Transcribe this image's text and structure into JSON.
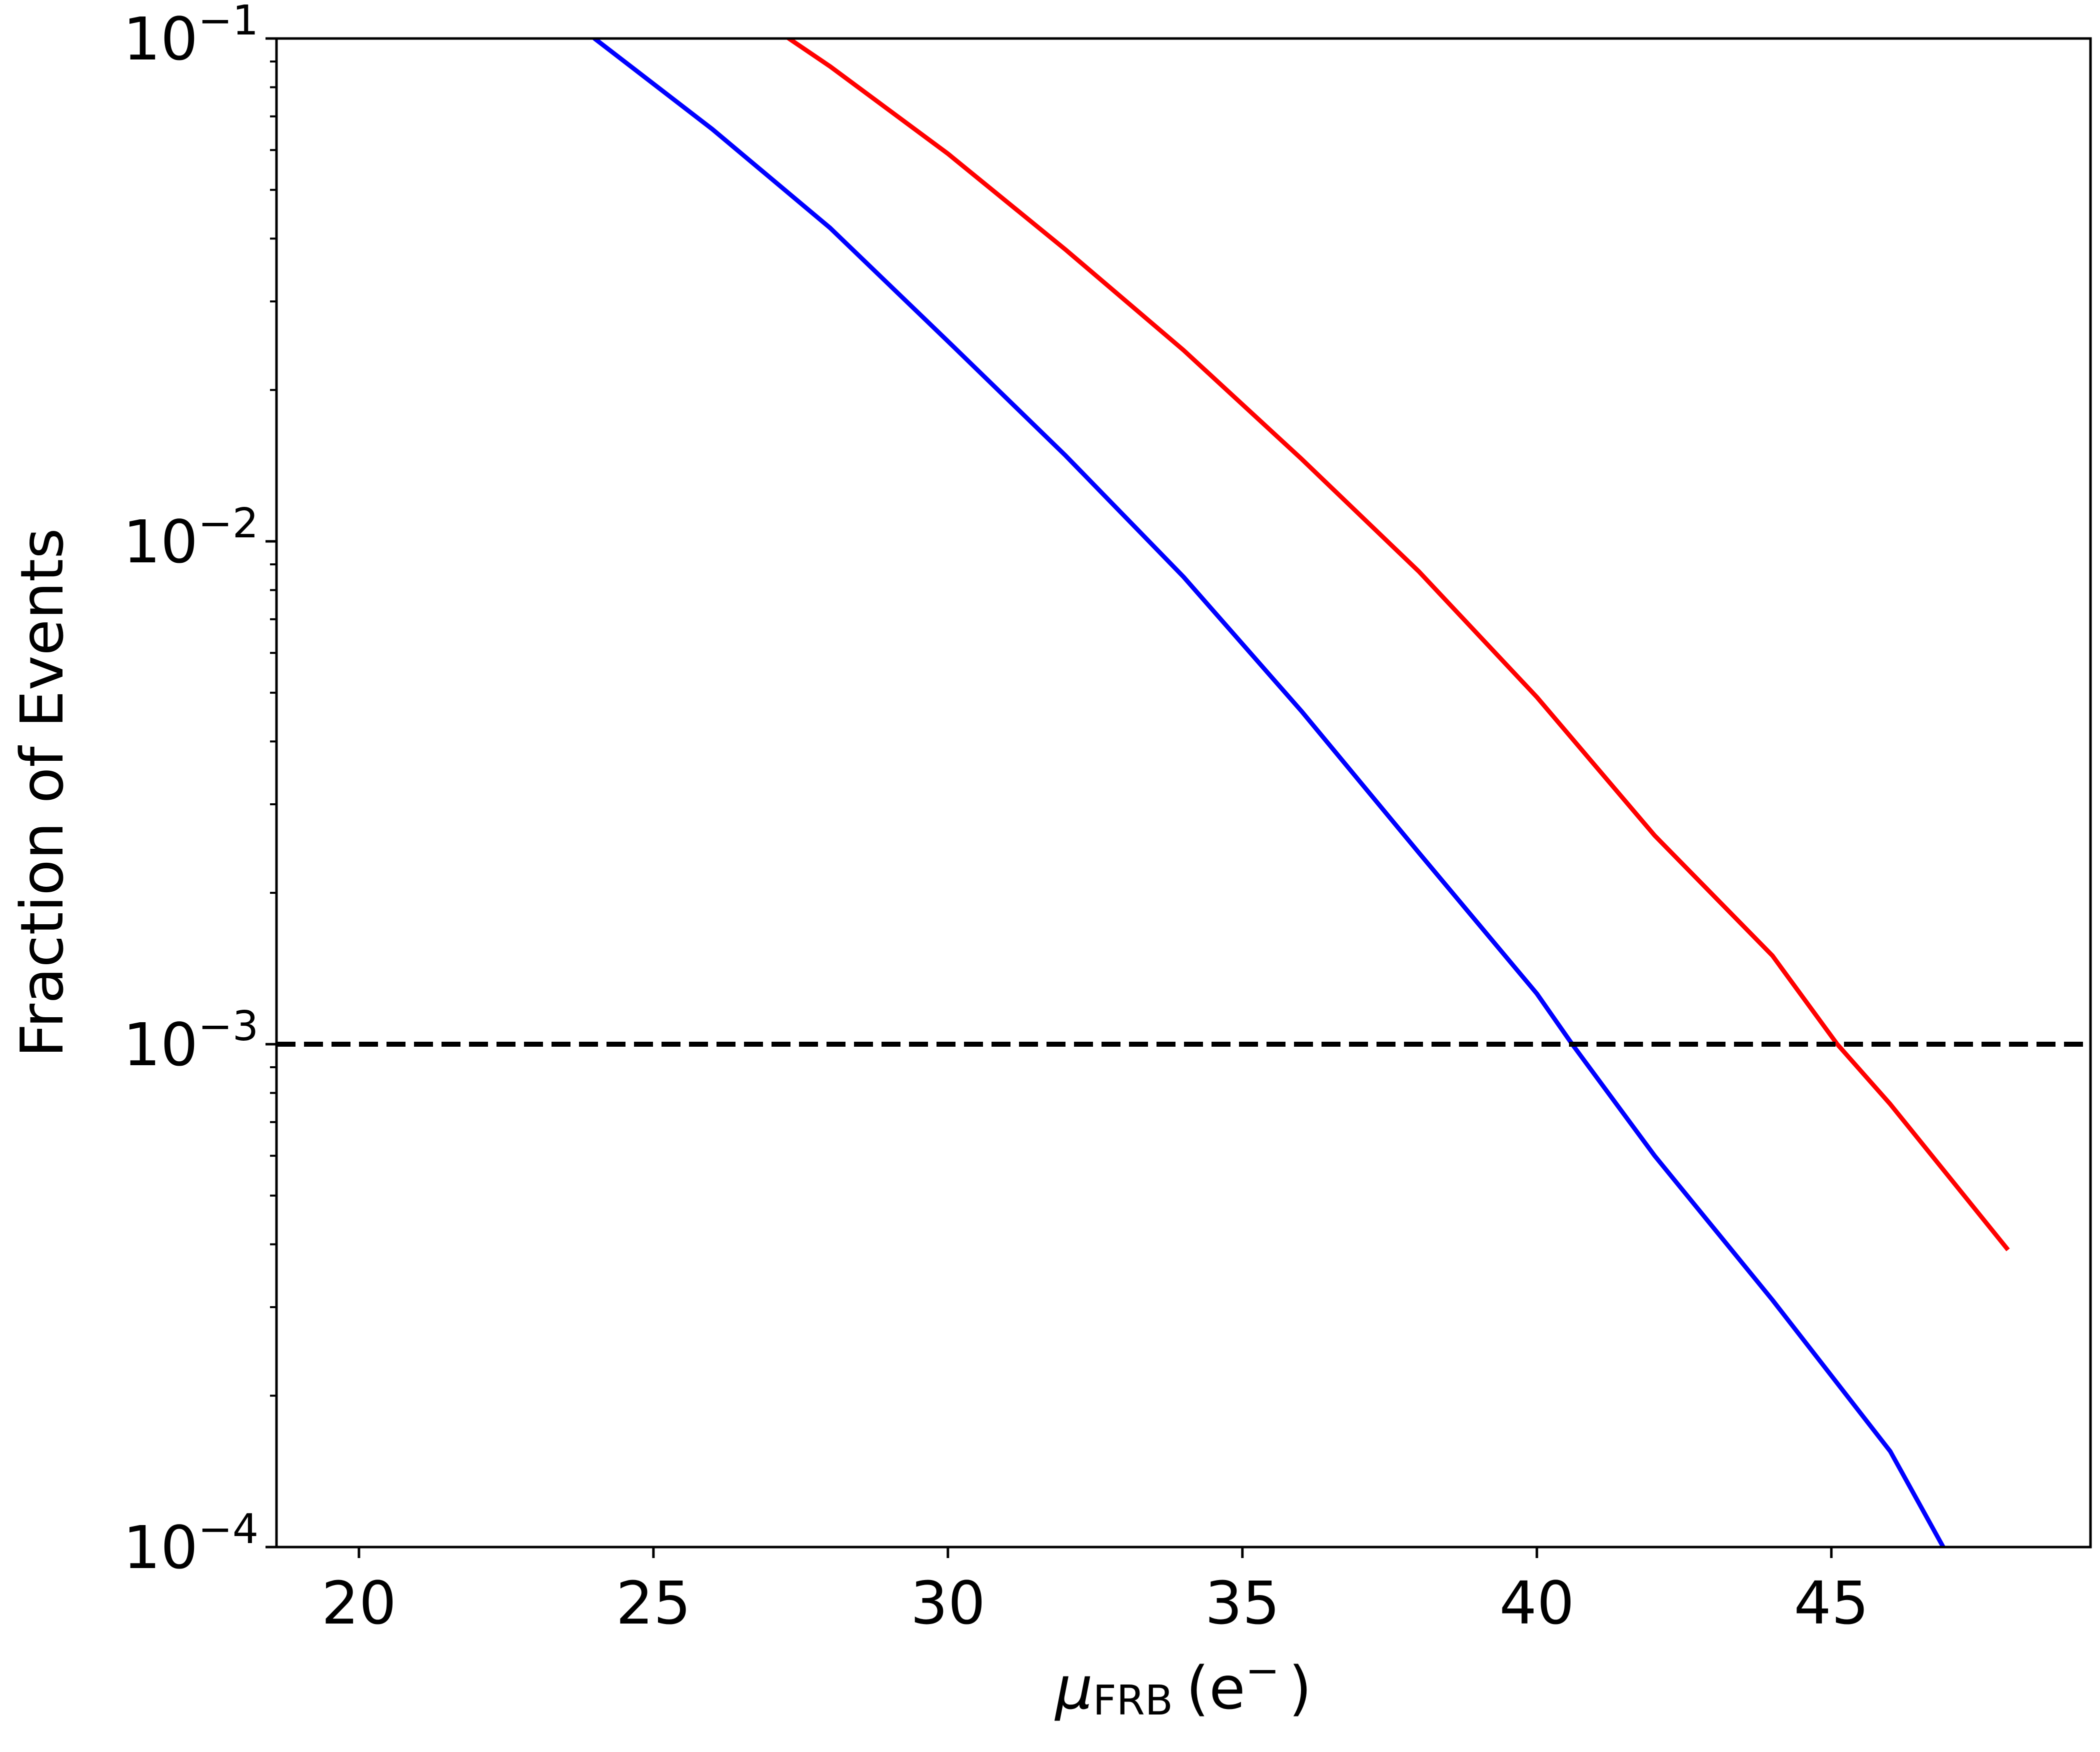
{
  "chart_data": {
    "type": "line",
    "xlabel": {
      "symbol": "μ",
      "subscript": "FRB",
      "unit": "(e",
      "unit_sup": "−",
      "unit_close": ")"
    },
    "ylabel": "Fraction of Events",
    "xlim": [
      18.6,
      49.4
    ],
    "ylim": [
      0.0001,
      0.1
    ],
    "yscale": "log",
    "x_ticks": [
      20,
      25,
      30,
      35,
      40,
      45
    ],
    "x_tick_labels": [
      "20",
      "25",
      "30",
      "35",
      "40",
      "45"
    ],
    "y_ticks": [
      {
        "value": 0.0001,
        "base": "10",
        "exp": "−4"
      },
      {
        "value": 0.001,
        "base": "10",
        "exp": "−3"
      },
      {
        "value": 0.01,
        "base": "10",
        "exp": "−2"
      },
      {
        "value": 0.1,
        "base": "10",
        "exp": "−1"
      }
    ],
    "grid": false,
    "series": [
      {
        "color": "#ff0000",
        "style": "solid",
        "x": [
          26,
          27.3,
          28,
          30,
          32,
          34,
          36,
          38,
          40,
          42,
          44,
          45.1,
          46,
          48
        ],
        "y": [
          0.13,
          0.1,
          0.088,
          0.059,
          0.038,
          0.024,
          0.0146,
          0.0087,
          0.0049,
          0.0026,
          0.0015,
          0.001,
          0.00076,
          0.00039
        ]
      },
      {
        "color": "#0000ff",
        "style": "solid",
        "x": [
          23,
          24,
          26,
          28,
          30,
          32,
          34,
          36,
          38,
          40,
          40.6,
          42,
          44,
          46,
          46.9
        ],
        "y": [
          0.13,
          0.1,
          0.066,
          0.042,
          0.025,
          0.0148,
          0.0085,
          0.0046,
          0.0024,
          0.00126,
          0.001,
          0.0006,
          0.00031,
          0.000155,
          0.0001
        ]
      }
    ],
    "hlines": [
      {
        "y": 0.001,
        "color": "#000000",
        "style": "dashed"
      }
    ]
  }
}
